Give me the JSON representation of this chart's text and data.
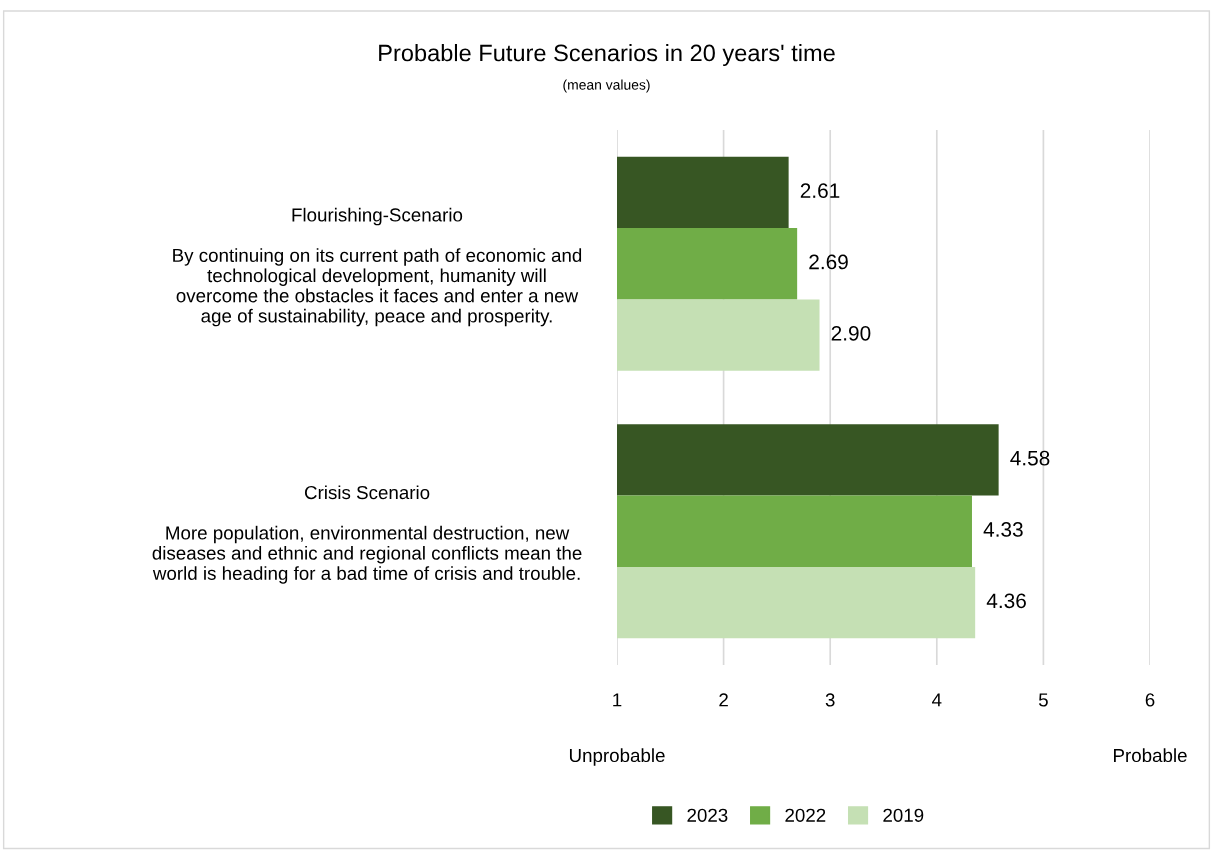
{
  "chart_data": {
    "type": "bar",
    "orientation": "horizontal",
    "title": "Probable Future Scenarios in 20 years' time",
    "subtitle": "(mean values)",
    "categories": [
      "Flourishing-Scenario\n\nBy continuing on its current path of economic and\ntechnological development, humanity will\novercome the obstacles it faces and enter a new\nage of sustainability, peace and prosperity.",
      "Crisis Scenario\n\nMore population, environmental destruction, new\ndiseases and ethnic and regional conflicts mean the\nworld is heading for a bad time of crisis and trouble."
    ],
    "series": [
      {
        "name": "2023",
        "color": "#375623",
        "values": [
          2.61,
          4.58
        ],
        "value_labels": [
          "2.61",
          "4.58"
        ]
      },
      {
        "name": "2022",
        "color": "#70ad47",
        "values": [
          2.69,
          4.33
        ],
        "value_labels": [
          "2.69",
          "4.33"
        ]
      },
      {
        "name": "2019",
        "color": "#c5e0b4",
        "values": [
          2.9,
          4.36
        ],
        "value_labels": [
          "2.90",
          "4.36"
        ]
      }
    ],
    "xlim": [
      1,
      6
    ],
    "xticks": [
      1,
      2,
      3,
      4,
      5,
      6
    ],
    "grid": "x",
    "legend": "bottom",
    "annotations": [
      "Unprobable",
      "Probable"
    ]
  }
}
